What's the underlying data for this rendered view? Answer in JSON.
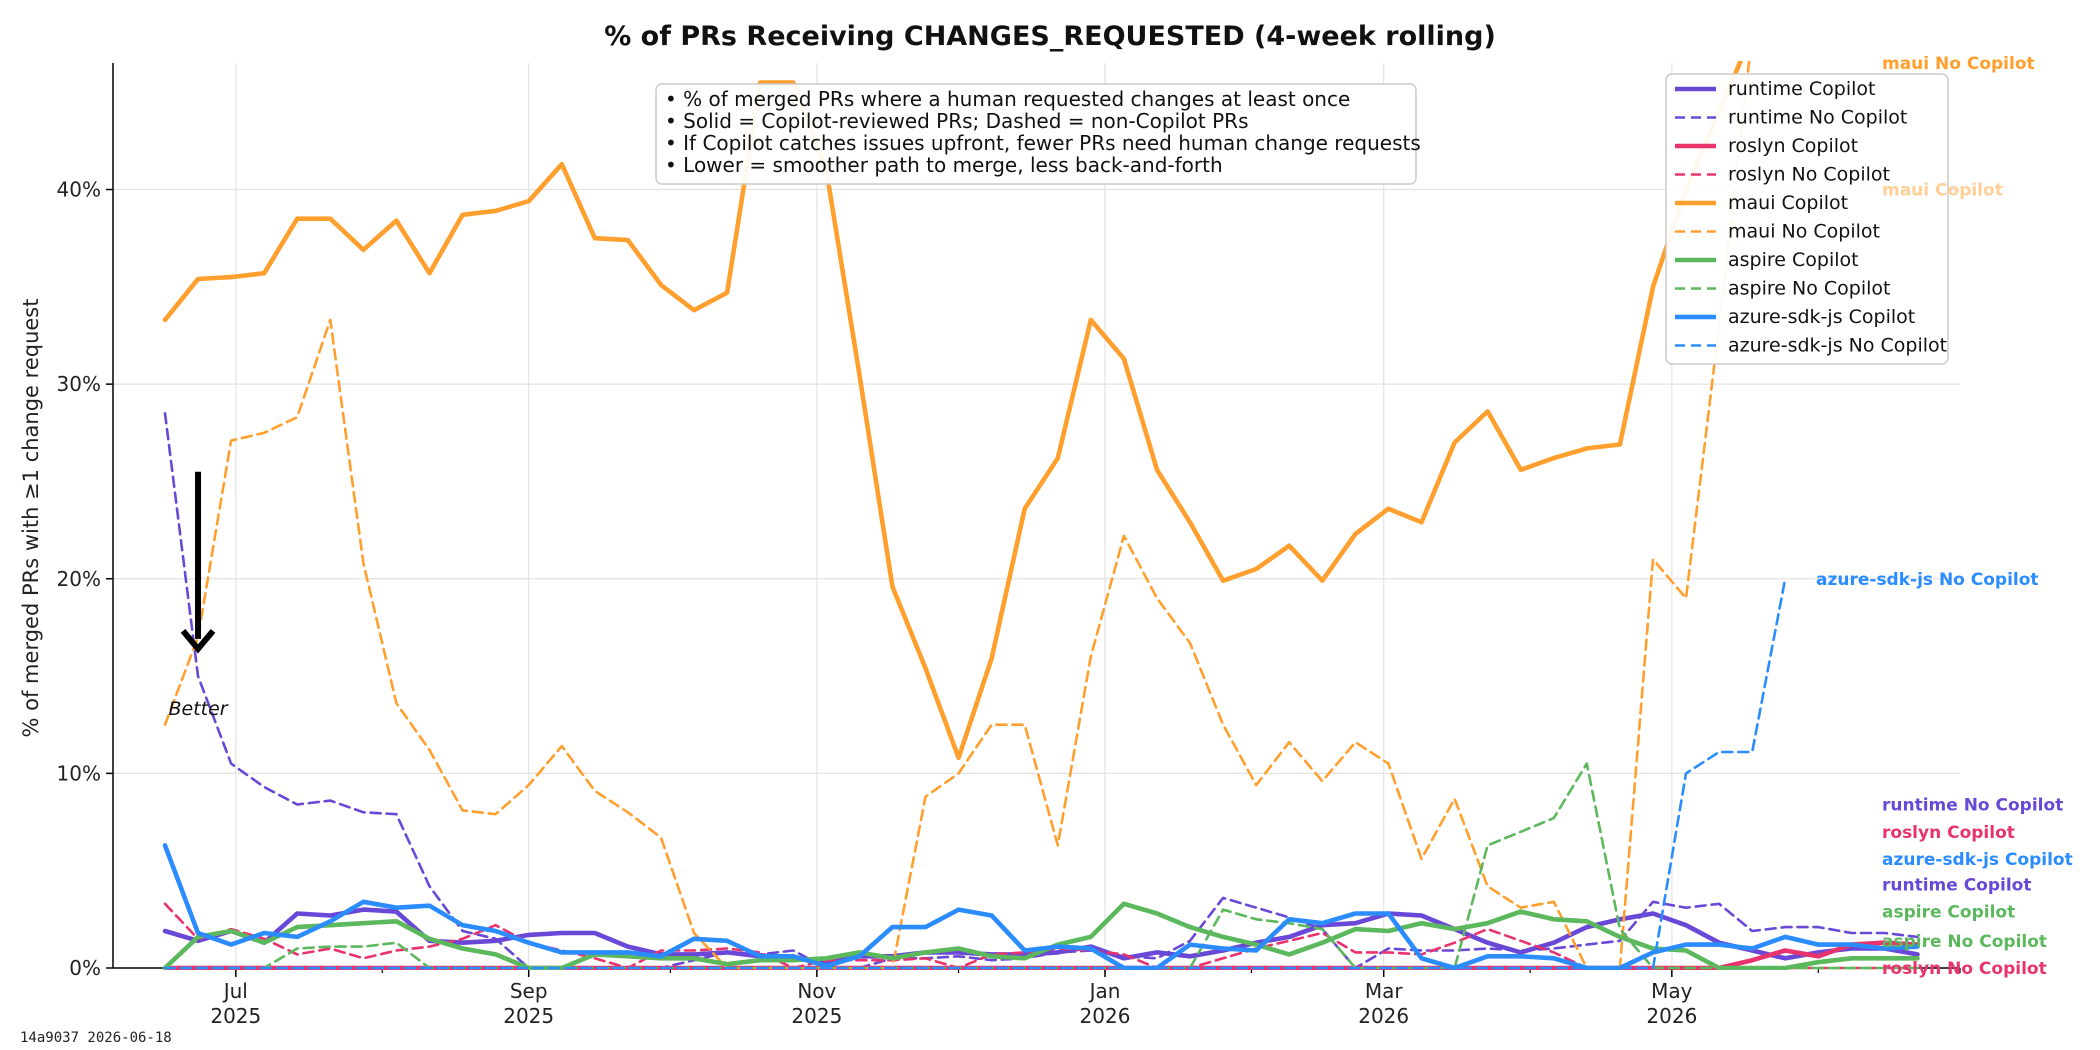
{
  "chart_data": {
    "type": "line",
    "title": "% of PRs Receiving CHANGES_REQUESTED (4-week rolling)",
    "xlabel": "",
    "ylabel": "% of merged PRs with ≥1 change request",
    "xlim": [
      "2025-06-05",
      "2026-07-01"
    ],
    "ylim": [
      0,
      46.5
    ],
    "x_ticks": [
      {
        "date": "2025-07-01",
        "label": [
          "Jul",
          "2025"
        ]
      },
      {
        "date": "2025-09-01",
        "label": [
          "Sep",
          "2025"
        ]
      },
      {
        "date": "2025-11-01",
        "label": [
          "Nov",
          "2025"
        ]
      },
      {
        "date": "2026-01-01",
        "label": [
          "Jan",
          "2026"
        ]
      },
      {
        "date": "2026-03-01",
        "label": [
          "Mar",
          "2026"
        ]
      },
      {
        "date": "2026-05-01",
        "label": [
          "May",
          "2026"
        ]
      }
    ],
    "y_ticks": [
      {
        "value": 0,
        "label": "0%"
      },
      {
        "value": 10,
        "label": "10%"
      },
      {
        "value": 20,
        "label": "20%"
      },
      {
        "value": 30,
        "label": "30%"
      },
      {
        "value": 40,
        "label": "40%"
      }
    ],
    "grid": true,
    "legend_position": "top-right",
    "notes": [
      "• % of merged PRs where a human requested changes at least once",
      "• Solid = Copilot-reviewed PRs; Dashed = non-Copilot PRs",
      "• If Copilot catches issues upfront, fewer PRs need human change requests",
      "• Lower = smoother path to merge, less back-and-forth"
    ],
    "annotation": {
      "text": "Better",
      "arrow_from": [
        "2025-06-23",
        25.5
      ],
      "arrow_to": [
        "2025-06-23",
        16.5
      ]
    },
    "x": [
      "2025-06-16",
      "2025-06-23",
      "2025-06-30",
      "2025-07-07",
      "2025-07-14",
      "2025-07-21",
      "2025-07-28",
      "2025-08-04",
      "2025-08-11",
      "2025-08-18",
      "2025-08-25",
      "2025-09-01",
      "2025-09-08",
      "2025-09-15",
      "2025-09-22",
      "2025-09-29",
      "2025-10-06",
      "2025-10-13",
      "2025-10-20",
      "2025-10-27",
      "2025-11-03",
      "2025-11-10",
      "2025-11-17",
      "2025-11-24",
      "2025-12-01",
      "2025-12-08",
      "2025-12-15",
      "2025-12-22",
      "2025-12-29",
      "2026-01-05",
      "2026-01-12",
      "2026-01-19",
      "2026-01-26",
      "2026-02-02",
      "2026-02-09",
      "2026-02-16",
      "2026-02-23",
      "2026-03-02",
      "2026-03-09",
      "2026-03-16",
      "2026-03-23",
      "2026-03-30",
      "2026-04-06",
      "2026-04-13",
      "2026-04-20",
      "2026-04-27",
      "2026-05-04",
      "2026-05-11",
      "2026-05-18",
      "2026-05-25",
      "2026-06-01",
      "2026-06-08",
      "2026-06-15",
      "2026-06-22"
    ],
    "series": [
      {
        "name": "runtime Copilot",
        "color": "#6a48d7",
        "dash": false,
        "end_label": "runtime Copilot",
        "values": [
          1.9,
          1.4,
          1.9,
          1.3,
          2.8,
          2.7,
          3.0,
          2.9,
          1.4,
          1.3,
          1.4,
          1.7,
          1.8,
          1.8,
          1.1,
          0.7,
          0.7,
          0.8,
          0.6,
          0.5,
          0.3,
          0.6,
          0.6,
          0.8,
          0.8,
          0.7,
          0.7,
          0.8,
          1.1,
          0.5,
          0.8,
          0.6,
          0.9,
          1.3,
          1.6,
          2.2,
          2.3,
          2.8,
          2.7,
          2.0,
          1.3,
          0.8,
          1.3,
          2.1,
          2.5,
          2.8,
          2.2,
          1.3,
          0.9,
          0.5,
          0.8,
          1.0,
          1.0,
          0.7
        ]
      },
      {
        "name": "runtime No Copilot",
        "color": "#6a48d7",
        "dash": true,
        "end_label": "runtime No Copilot",
        "values": [
          28.5,
          15.0,
          10.5,
          9.3,
          8.4,
          8.6,
          8.0,
          7.9,
          4.2,
          1.9,
          1.5,
          0.0,
          0.0,
          0.0,
          0.0,
          0.0,
          0.4,
          0.8,
          0.7,
          0.9,
          0.0,
          0.0,
          0.5,
          0.5,
          0.6,
          0.4,
          0.5,
          0.8,
          0.9,
          0.6,
          0.5,
          1.4,
          3.6,
          3.1,
          2.6,
          2.0,
          0.0,
          1.0,
          0.9,
          0.9,
          1.0,
          0.9,
          1.0,
          1.2,
          1.4,
          3.4,
          3.1,
          3.3,
          1.9,
          2.1,
          2.1,
          1.8,
          1.8,
          1.6
        ]
      },
      {
        "name": "roslyn Copilot",
        "color": "#e8336d",
        "dash": false,
        "end_label": "roslyn Copilot",
        "values": [
          0,
          0,
          0,
          0,
          0,
          0,
          0,
          0,
          0,
          0,
          0,
          0,
          0,
          0,
          0,
          0,
          0,
          0,
          0,
          0,
          0,
          0,
          0,
          0,
          0,
          0,
          0,
          0,
          0,
          0,
          0,
          0,
          0,
          0,
          0,
          0,
          0,
          0,
          0,
          0,
          0,
          0,
          0,
          0,
          0,
          0,
          0,
          0,
          0.4,
          0.9,
          0.6,
          1.2,
          1.3,
          1.2
        ]
      },
      {
        "name": "roslyn No Copilot",
        "color": "#e8336d",
        "dash": true,
        "end_label": "roslyn No Copilot",
        "values": [
          3.3,
          1.5,
          2.0,
          1.5,
          0.7,
          1.0,
          0.5,
          0.9,
          1.1,
          1.5,
          2.2,
          1.3,
          0.9,
          0.5,
          0.0,
          0.9,
          0.9,
          1.0,
          0.8,
          0.0,
          0.4,
          0.4,
          0.4,
          0.5,
          0.0,
          0.7,
          0.8,
          1.0,
          0.9,
          0.7,
          0.0,
          0.0,
          0.5,
          1.0,
          1.4,
          1.8,
          0.8,
          0.8,
          0.7,
          1.3,
          2.0,
          1.4,
          0.8,
          0.0,
          0.0,
          0.0,
          0.0,
          0.0,
          0.0,
          0.0,
          0.0,
          0.0,
          0.0,
          0.0
        ]
      },
      {
        "name": "maui Copilot",
        "color": "#ff9f2e",
        "dash": false,
        "end_label": "maui Copilot",
        "values": [
          33.3,
          35.4,
          35.5,
          35.7,
          38.5,
          38.5,
          36.9,
          38.4,
          35.7,
          38.7,
          38.9,
          39.4,
          41.3,
          37.5,
          37.4,
          35.1,
          33.8,
          34.7,
          45.5,
          45.5,
          41.0,
          30.5,
          19.6,
          15.4,
          10.8,
          15.9,
          23.6,
          26.2,
          33.3,
          31.3,
          25.6,
          22.9,
          19.9,
          20.5,
          21.7,
          19.9,
          22.3,
          23.6,
          22.9,
          27.0,
          28.6,
          25.6,
          26.2,
          26.7,
          26.9,
          35.0,
          40.0,
          44.0,
          48.0,
          48.0,
          48.0,
          48.0,
          48.0,
          48.0
        ]
      },
      {
        "name": "maui No Copilot",
        "color": "#ff9f2e",
        "dash": true,
        "end_label": "maui No Copilot",
        "values": [
          12.5,
          17.0,
          27.1,
          27.5,
          28.3,
          33.3,
          20.8,
          13.6,
          11.2,
          8.1,
          7.9,
          9.4,
          11.4,
          9.1,
          8.0,
          6.7,
          1.8,
          0.0,
          0.0,
          0.0,
          0.0,
          0.0,
          0.0,
          8.8,
          10.0,
          12.5,
          12.5,
          6.3,
          16.0,
          22.2,
          19.0,
          16.7,
          12.5,
          9.4,
          11.6,
          9.6,
          11.6,
          10.5,
          5.6,
          8.7,
          4.2,
          3.1,
          3.4,
          0.0,
          0.0,
          21.0,
          19.0,
          33.0,
          48.0,
          48.0,
          48.0,
          48.0,
          48.0,
          48.0
        ]
      },
      {
        "name": "aspire Copilot",
        "color": "#5cb85c",
        "dash": false,
        "end_label": "aspire Copilot",
        "values": [
          0.0,
          1.6,
          1.9,
          1.3,
          2.1,
          2.2,
          2.3,
          2.4,
          1.5,
          1.0,
          0.7,
          0.0,
          0.0,
          0.7,
          0.6,
          0.5,
          0.5,
          0.2,
          0.4,
          0.4,
          0.5,
          0.8,
          0.5,
          0.8,
          1.0,
          0.6,
          0.5,
          1.2,
          1.6,
          3.3,
          2.8,
          2.1,
          1.6,
          1.2,
          0.7,
          1.3,
          2.0,
          1.9,
          2.3,
          2.0,
          2.3,
          2.9,
          2.5,
          2.4,
          1.6,
          1.0,
          0.9,
          0.0,
          0.0,
          0.0,
          0.3,
          0.5,
          0.5,
          0.5
        ]
      },
      {
        "name": "aspire No Copilot",
        "color": "#5cb85c",
        "dash": true,
        "end_label": "aspire No Copilot",
        "values": [
          0,
          0,
          0,
          0,
          1.0,
          1.1,
          1.1,
          1.3,
          0,
          0,
          0,
          0,
          0,
          0,
          0,
          0,
          0,
          0,
          0,
          0,
          0,
          0,
          0,
          0,
          0,
          0,
          0,
          0,
          0,
          0,
          0,
          0,
          3.0,
          2.5,
          2.3,
          2.0,
          0.0,
          0.0,
          0.0,
          0.0,
          6.3,
          7.0,
          7.7,
          10.5,
          2.0,
          0.0,
          0.0,
          0.0,
          0.0,
          0.0,
          0.0,
          0.0,
          0.0,
          0.0
        ]
      },
      {
        "name": "azure-sdk-js Copilot",
        "color": "#2b8cff",
        "dash": false,
        "end_label": "azure-sdk-js Copilot",
        "values": [
          6.3,
          1.8,
          1.2,
          1.8,
          1.6,
          2.4,
          3.4,
          3.1,
          3.2,
          2.2,
          1.9,
          1.3,
          0.8,
          0.8,
          0.8,
          0.6,
          1.5,
          1.4,
          0.6,
          0.6,
          0.1,
          0.6,
          2.1,
          2.1,
          3.0,
          2.7,
          0.9,
          1.1,
          1.0,
          0.0,
          0.0,
          1.2,
          1.0,
          0.9,
          2.5,
          2.3,
          2.8,
          2.8,
          0.5,
          0.0,
          0.6,
          0.6,
          0.5,
          0.0,
          0.0,
          0.8,
          1.2,
          1.2,
          1.0,
          1.6,
          1.2,
          1.2,
          1.0,
          1.1
        ]
      },
      {
        "name": "azure-sdk-js No Copilot",
        "color": "#2b8cff",
        "dash": true,
        "end_label": "azure-sdk-js No Copilot",
        "values": [
          0,
          0,
          0,
          0,
          0,
          0,
          0,
          0,
          0,
          0,
          0,
          0,
          0,
          0,
          0,
          0,
          0,
          0,
          0,
          0,
          0,
          0,
          0,
          0,
          0,
          0,
          0,
          0,
          0,
          0,
          0,
          0,
          0,
          0,
          0,
          0,
          0,
          0,
          0,
          0,
          0,
          0,
          0,
          0,
          0,
          0,
          10.0,
          11.1,
          11.1,
          20.0,
          null,
          null,
          null,
          null
        ]
      }
    ]
  },
  "end_labels": [
    {
      "text": "maui No Copilot",
      "color": "#ff9f2e",
      "value": 46.5
    },
    {
      "text": "maui Copilot",
      "color": "#ffcf97",
      "value": 40.0
    },
    {
      "text": "azure-sdk-js No Copilot",
      "color": "#2b8cff",
      "value": 20.0
    },
    {
      "text": "runtime No Copilot",
      "color": "#6a48d7",
      "value": 8.4
    },
    {
      "text": "roslyn Copilot",
      "color": "#e8336d",
      "value": 7.0
    },
    {
      "text": "azure-sdk-js Copilot",
      "color": "#2b8cff",
      "value": 5.6
    },
    {
      "text": "runtime Copilot",
      "color": "#6a48d7",
      "value": 4.3
    },
    {
      "text": "aspire Copilot",
      "color": "#5cb85c",
      "value": 2.9
    },
    {
      "text": "aspire No Copilot",
      "color": "#5cb85c",
      "value": 1.4
    },
    {
      "text": "roslyn No Copilot",
      "color": "#e8336d",
      "value": 0.0
    }
  ],
  "footer": "14a9037  2026-06-18"
}
